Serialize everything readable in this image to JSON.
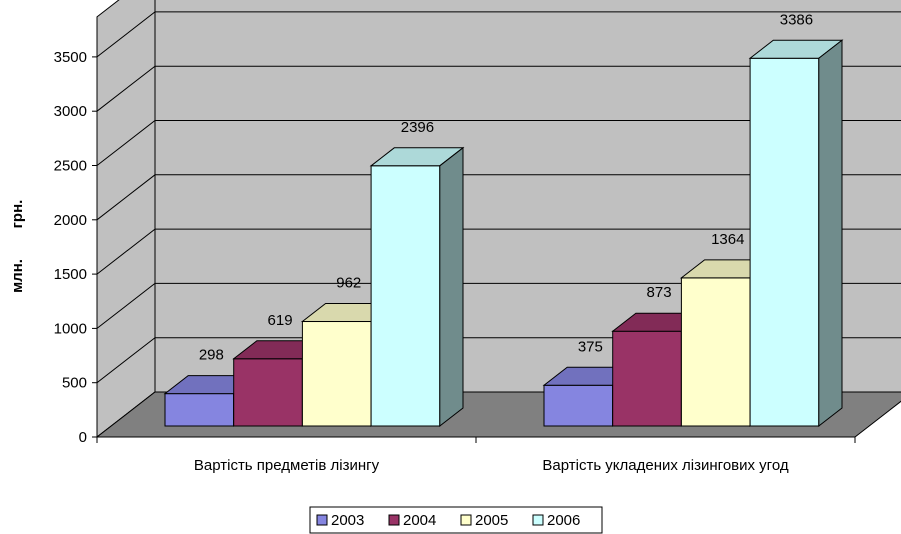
{
  "chart_data": {
    "type": "bar",
    "categories": [
      "Вартість предметів лізингу",
      "Вартість укладених лізингових угод"
    ],
    "series": [
      {
        "name": "2003",
        "values": [
          298,
          375
        ],
        "color": "#8585E0"
      },
      {
        "name": "2004",
        "values": [
          619,
          873
        ],
        "color": "#993366"
      },
      {
        "name": "2005",
        "values": [
          962,
          1364
        ],
        "color": "#FFFFCC"
      },
      {
        "name": "2006",
        "values": [
          2396,
          3386
        ],
        "color": "#CCFFFF"
      }
    ],
    "ylabel_top": "грн.",
    "ylabel_bottom": "млн.",
    "ylim": [
      0,
      3500
    ],
    "yticks": [
      "0",
      "500",
      "1000",
      "1500",
      "2000",
      "2500",
      "3000",
      "3500"
    ],
    "grid": true,
    "legend": "bottom",
    "background_color": "#C0C0C0",
    "floor_color": "#808080",
    "side_color": "#808080"
  }
}
